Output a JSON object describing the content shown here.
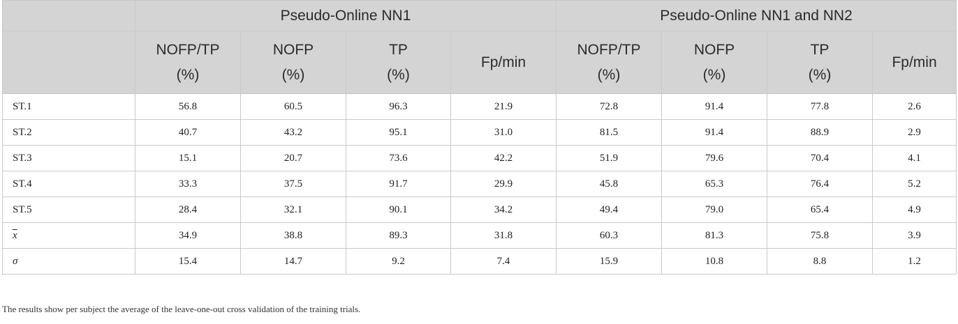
{
  "table": {
    "groups": [
      "Pseudo-Online NN1",
      "Pseudo-Online NN1 and NN2"
    ],
    "columns": [
      {
        "name": "NOFP/TP",
        "unit": "(%)"
      },
      {
        "name": "NOFP",
        "unit": "(%)"
      },
      {
        "name": "TP",
        "unit": "(%)"
      },
      {
        "name": "Fp/min",
        "unit": ""
      },
      {
        "name": "NOFP/TP",
        "unit": "(%)"
      },
      {
        "name": "NOFP",
        "unit": "(%)"
      },
      {
        "name": "TP",
        "unit": "(%)"
      },
      {
        "name": "Fp/min",
        "unit": ""
      }
    ],
    "rows": [
      {
        "label": "ST.1",
        "values": [
          "56.8",
          "60.5",
          "96.3",
          "21.9",
          "72.8",
          "91.4",
          "77.8",
          "2.6"
        ]
      },
      {
        "label": "ST.2",
        "values": [
          "40.7",
          "43.2",
          "95.1",
          "31.0",
          "81.5",
          "91.4",
          "88.9",
          "2.9"
        ]
      },
      {
        "label": "ST.3",
        "values": [
          "15.1",
          "20.7",
          "73.6",
          "42.2",
          "51.9",
          "79.6",
          "70.4",
          "4.1"
        ]
      },
      {
        "label": "ST.4",
        "values": [
          "33.3",
          "37.5",
          "91.7",
          "29.9",
          "45.8",
          "65.3",
          "76.4",
          "5.2"
        ]
      },
      {
        "label": "ST.5",
        "values": [
          "28.4",
          "32.1",
          "90.1",
          "34.2",
          "49.4",
          "79.0",
          "65.4",
          "4.9"
        ]
      },
      {
        "label": "x",
        "values": [
          "34.9",
          "38.8",
          "89.3",
          "31.8",
          "60.3",
          "81.3",
          "75.8",
          "3.9"
        ]
      },
      {
        "label": "σ",
        "values": [
          "15.4",
          "14.7",
          "9.2",
          "7.4",
          "15.9",
          "10.8",
          "8.8",
          "1.2"
        ]
      }
    ]
  },
  "footnote": "The results show per subject the average of the leave-one-out cross validation of the training trials."
}
